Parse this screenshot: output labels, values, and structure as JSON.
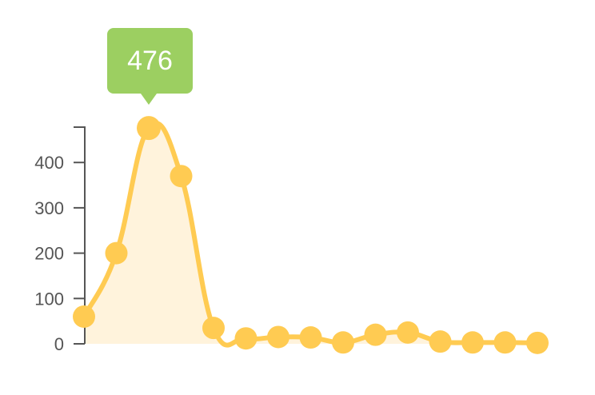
{
  "chart_data": {
    "type": "area",
    "x": [
      1,
      2,
      3,
      4,
      5,
      6,
      7,
      8,
      9,
      10,
      11,
      12,
      13,
      14,
      15
    ],
    "values": [
      60,
      200,
      476,
      370,
      35,
      12,
      15,
      14,
      3,
      20,
      25,
      5,
      3,
      3,
      2
    ],
    "y_ticks": [
      "0",
      "100",
      "200",
      "300",
      "400"
    ],
    "ylim": [
      0,
      476
    ],
    "grid": false,
    "title": "",
    "xlabel": "",
    "ylabel": "",
    "highlight_index": 2,
    "tooltip_value": "476",
    "colors": {
      "line": "#ffcb52",
      "fill": "#fff3dc",
      "tooltip": "#9ccf61",
      "axis": "#555555"
    }
  }
}
